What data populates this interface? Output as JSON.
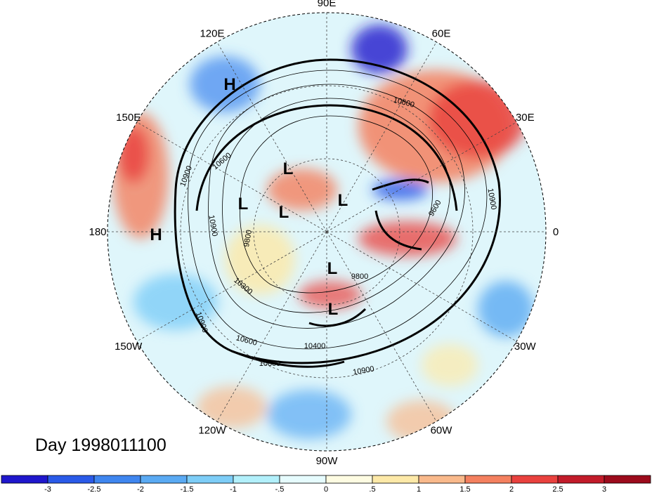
{
  "title": "Day 1998011100",
  "longitude_labels": [
    {
      "text": "90E",
      "deg": 90
    },
    {
      "text": "60E",
      "deg": 60
    },
    {
      "text": "30E",
      "deg": 30
    },
    {
      "text": "0",
      "deg": 0
    },
    {
      "text": "30W",
      "deg": -30
    },
    {
      "text": "60W",
      "deg": -60
    },
    {
      "text": "90W",
      "deg": -90
    },
    {
      "text": "120W",
      "deg": -120
    },
    {
      "text": "150W",
      "deg": -150
    },
    {
      "text": "180",
      "deg": 180
    },
    {
      "text": "150E",
      "deg": 150
    },
    {
      "text": "120E",
      "deg": 120
    }
  ],
  "pressure_centers": [
    {
      "type": "H",
      "label": "H"
    },
    {
      "type": "H",
      "label": "H"
    },
    {
      "type": "L",
      "label": "L"
    },
    {
      "type": "L",
      "label": "L"
    },
    {
      "type": "L",
      "label": "L"
    },
    {
      "type": "L",
      "label": "L"
    },
    {
      "type": "L",
      "label": "L"
    },
    {
      "type": "L",
      "label": "L"
    }
  ],
  "contour_labels": [
    "10900",
    "10600",
    "10900",
    "9800",
    "10300",
    "10900",
    "10600",
    "10800",
    "10400",
    "10900",
    "9800",
    "10600",
    "10900",
    "9600"
  ],
  "colorbar": {
    "ticks": [
      "-3",
      "-2.5",
      "-2",
      "-1.5",
      "-1",
      "-.5",
      "0",
      ".5",
      "1",
      "1.5",
      "2",
      "2.5",
      "3"
    ],
    "colors": [
      "#1f17cc",
      "#2a5ae8",
      "#3f86ef",
      "#5aaaf3",
      "#7dcdf7",
      "#b2f0fb",
      "#e6fcfe",
      "#fefce2",
      "#fde9a8",
      "#f9b98b",
      "#f4805f",
      "#e9413e",
      "#c21b2a",
      "#9c0b1c"
    ]
  }
}
